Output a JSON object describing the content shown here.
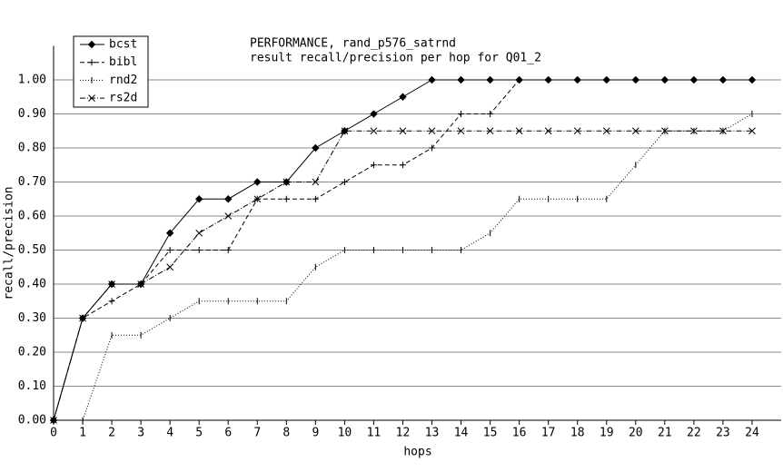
{
  "chart_data": {
    "type": "line",
    "title": "PERFORMANCE, rand_p576_satrnd",
    "subtitle": "result recall/precision per hop for Q01_2",
    "x_label": "hops",
    "y_label": "recall/precision",
    "x": [
      0,
      1,
      2,
      3,
      4,
      5,
      6,
      7,
      8,
      9,
      10,
      11,
      12,
      13,
      14,
      15,
      16,
      17,
      18,
      19,
      20,
      21,
      22,
      23,
      24
    ],
    "series": [
      {
        "name": "bcst",
        "color": "#000000",
        "dash": "",
        "marker": "diamond",
        "values": [
          0,
          0.3,
          0.4,
          0.4,
          0.55,
          0.65,
          0.65,
          0.7,
          0.7,
          0.8,
          0.85,
          0.9,
          0.95,
          1.0,
          1.0,
          1.0,
          1.0,
          1.0,
          1.0,
          1.0,
          1.0,
          1.0,
          1.0,
          1.0,
          1.0
        ]
      },
      {
        "name": "bibl",
        "color": "#000000",
        "dash": "5 3",
        "marker": "plus",
        "values": [
          0,
          0.3,
          0.35,
          0.4,
          0.5,
          0.5,
          0.5,
          0.65,
          0.65,
          0.65,
          0.7,
          0.75,
          0.75,
          0.8,
          0.9,
          0.9,
          1.0,
          1.0,
          1.0,
          1.0,
          1.0,
          1.0,
          1.0,
          1.0,
          1.0
        ]
      },
      {
        "name": "rnd2",
        "color": "#000000",
        "dash": "1 2",
        "marker": "tick",
        "values": [
          0,
          0,
          0.25,
          0.25,
          0.3,
          0.35,
          0.35,
          0.35,
          0.35,
          0.45,
          0.5,
          0.5,
          0.5,
          0.5,
          0.5,
          0.55,
          0.65,
          0.65,
          0.65,
          0.65,
          0.75,
          0.85,
          0.85,
          0.85,
          0.9
        ]
      },
      {
        "name": "rs2d",
        "color": "#000000",
        "dash": "6 2 1 2",
        "marker": "cross",
        "values": [
          0,
          0.3,
          0.4,
          0.4,
          0.45,
          0.55,
          0.6,
          0.65,
          0.7,
          0.7,
          0.85,
          0.85,
          0.85,
          0.85,
          0.85,
          0.85,
          0.85,
          0.85,
          0.85,
          0.85,
          0.85,
          0.85,
          0.85,
          0.85,
          0.85
        ]
      }
    ],
    "xlim": [
      0,
      25
    ],
    "ylim": [
      0,
      1.1
    ],
    "xticks": [
      0,
      1,
      2,
      3,
      4,
      5,
      6,
      7,
      8,
      9,
      10,
      11,
      12,
      13,
      14,
      15,
      16,
      17,
      18,
      19,
      20,
      21,
      22,
      23,
      24
    ],
    "yticks": [
      {
        "value": 0,
        "label": "0.00"
      },
      {
        "value": 0.1,
        "label": "0.10"
      },
      {
        "value": 0.2,
        "label": "0.20"
      },
      {
        "value": 0.3,
        "label": "0.30"
      },
      {
        "value": 0.4,
        "label": "0.40"
      },
      {
        "value": 0.5,
        "label": "0.50"
      },
      {
        "value": 0.6,
        "label": "0.60"
      },
      {
        "value": 0.7,
        "label": "0.70"
      },
      {
        "value": 0.8,
        "label": "0.80"
      },
      {
        "value": 0.9,
        "label": "0.90"
      },
      {
        "value": 1.0,
        "label": "1.00"
      }
    ],
    "grid": true,
    "legend": "upper-left"
  }
}
